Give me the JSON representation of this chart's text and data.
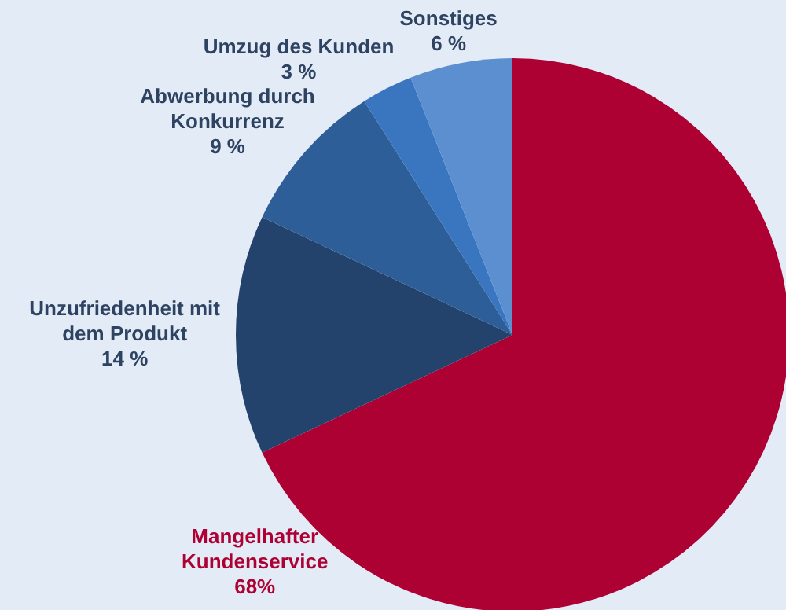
{
  "chart_data": {
    "type": "pie",
    "categories": [
      "Mangelhafter Kundenservice",
      "Unzufriedenheit mit dem Produkt",
      "Abwerbung durch Konkurrenz",
      "Umzug des Kunden",
      "Sonstiges"
    ],
    "values": [
      68,
      14,
      9,
      3,
      6
    ],
    "colors": [
      "#ad0033",
      "#23436c",
      "#2e5e98",
      "#3a76c0",
      "#5b8fd0"
    ],
    "value_labels": [
      "68%",
      "14 %",
      "9 %",
      "3 %",
      "6 %"
    ]
  }
}
